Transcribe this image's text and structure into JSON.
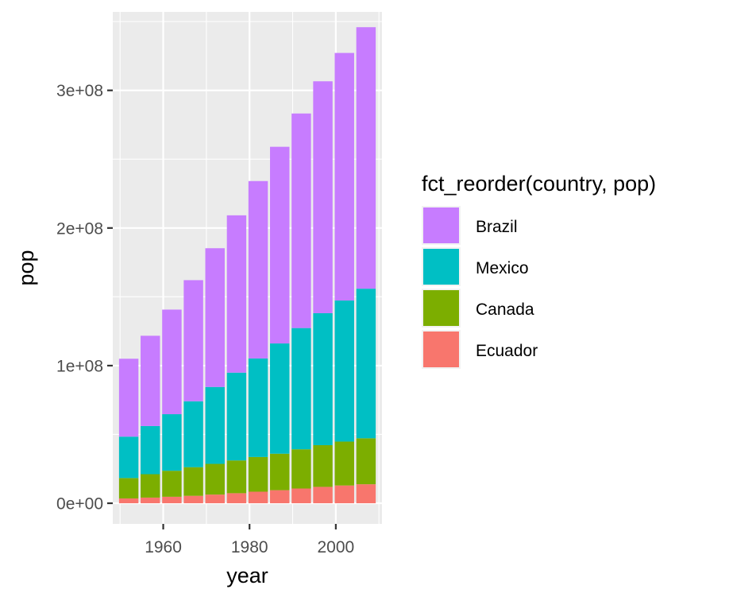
{
  "chart_data": {
    "type": "bar",
    "stacked": true,
    "xlabel": "year",
    "ylabel": "pop",
    "x": [
      1952,
      1957,
      1962,
      1967,
      1972,
      1977,
      1982,
      1987,
      1992,
      1997,
      2002,
      2007
    ],
    "x_ticks": [
      1960,
      1980,
      2000
    ],
    "x_tick_labels": [
      "1960",
      "1980",
      "2000"
    ],
    "xlim": [
      1948.3,
      2010.7
    ],
    "y_ticks": [
      0,
      100000000,
      200000000,
      300000000
    ],
    "y_tick_labels": [
      "0e+00",
      "1e+08",
      "2e+08",
      "3e+08"
    ],
    "ylim": [
      -15000000,
      357000000
    ],
    "grid": true,
    "panel_background": "#ebebeb",
    "legend_title": "fct_reorder(country, pop)",
    "legend_position": "right",
    "series": [
      {
        "name": "Brazil",
        "color": "#c77cff",
        "values": [
          56600000,
          65600000,
          76000000,
          88000000,
          100800000,
          114300000,
          128900000,
          142900000,
          155900000,
          168500000,
          179900000,
          190000000
        ]
      },
      {
        "name": "Mexico",
        "color": "#00bfc4",
        "values": [
          30100000,
          35000000,
          41100000,
          47900000,
          55900000,
          63800000,
          71600000,
          80100000,
          88100000,
          95900000,
          102500000,
          108700000
        ]
      },
      {
        "name": "Canada",
        "color": "#7cae00",
        "values": [
          14800000,
          17000000,
          18900000,
          20800000,
          22300000,
          23800000,
          25200000,
          26500000,
          28500000,
          30300000,
          31900000,
          33400000
        ]
      },
      {
        "name": "Ecuador",
        "color": "#f8766d",
        "values": [
          3500000,
          4100000,
          4700000,
          5400000,
          6300000,
          7300000,
          8400000,
          9500000,
          10700000,
          11900000,
          12900000,
          13800000
        ]
      }
    ]
  }
}
